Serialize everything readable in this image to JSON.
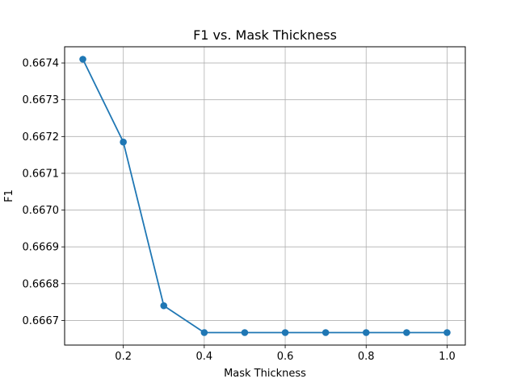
{
  "chart_data": {
    "type": "line",
    "title": "F1 vs. Mask Thickness",
    "xlabel": "Mask Thickness",
    "ylabel": "F1",
    "x": [
      0.1,
      0.2,
      0.3,
      0.4,
      0.5,
      0.6,
      0.7,
      0.8,
      0.9,
      1.0
    ],
    "series": [
      {
        "values": [
          0.66741,
          0.667185,
          0.66674,
          0.666667,
          0.666667,
          0.666667,
          0.666667,
          0.666667,
          0.666667,
          0.666667
        ],
        "color": "#1f77b4",
        "marker": "circle"
      }
    ],
    "xlim": [
      0.055,
      1.045
    ],
    "ylim": [
      0.666633,
      0.667444
    ],
    "xticks": [
      0.2,
      0.4,
      0.6,
      0.8,
      1.0
    ],
    "xtick_labels": [
      "0.2",
      "0.4",
      "0.6",
      "0.8",
      "1.0"
    ],
    "yticks": [
      0.6667,
      0.6668,
      0.6669,
      0.667,
      0.6671,
      0.6672,
      0.6673,
      0.6674
    ],
    "ytick_labels": [
      "0.6667",
      "0.6668",
      "0.6669",
      "0.6670",
      "0.6671",
      "0.6672",
      "0.6673",
      "0.6674"
    ],
    "grid": true,
    "legend": false
  }
}
